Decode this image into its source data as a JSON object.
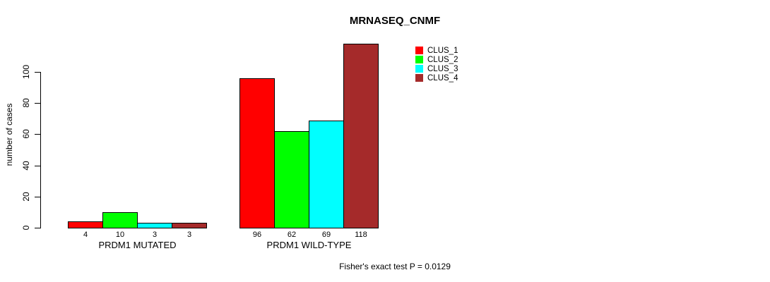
{
  "title": "MRNASEQ_CNMF",
  "ylabel": "number of cases",
  "footnote": "Fisher's exact test P = 0.0129",
  "chart_data": {
    "type": "bar",
    "title": "MRNASEQ_CNMF",
    "xlabel": "",
    "ylabel": "number of cases",
    "categories": [
      "PRDM1 MUTATED",
      "PRDM1 WILD-TYPE"
    ],
    "series": [
      {
        "name": "CLUS_1",
        "color": "#FF0000",
        "values": [
          4,
          96
        ]
      },
      {
        "name": "CLUS_2",
        "color": "#00FF00",
        "values": [
          10,
          62
        ]
      },
      {
        "name": "CLUS_3",
        "color": "#00FFFF",
        "values": [
          3,
          69
        ]
      },
      {
        "name": "CLUS_4",
        "color": "#A52A2A",
        "values": [
          3,
          118
        ]
      }
    ],
    "bar_value_labels": [
      [
        "4",
        "10",
        "3",
        "3"
      ],
      [
        "96",
        "62",
        "69",
        "118"
      ]
    ],
    "yticks": [
      0,
      20,
      40,
      60,
      80,
      100
    ],
    "ylim": [
      0,
      118
    ],
    "grid": false,
    "legend_position": "top-right",
    "annotation": "Fisher's exact test P = 0.0129"
  }
}
